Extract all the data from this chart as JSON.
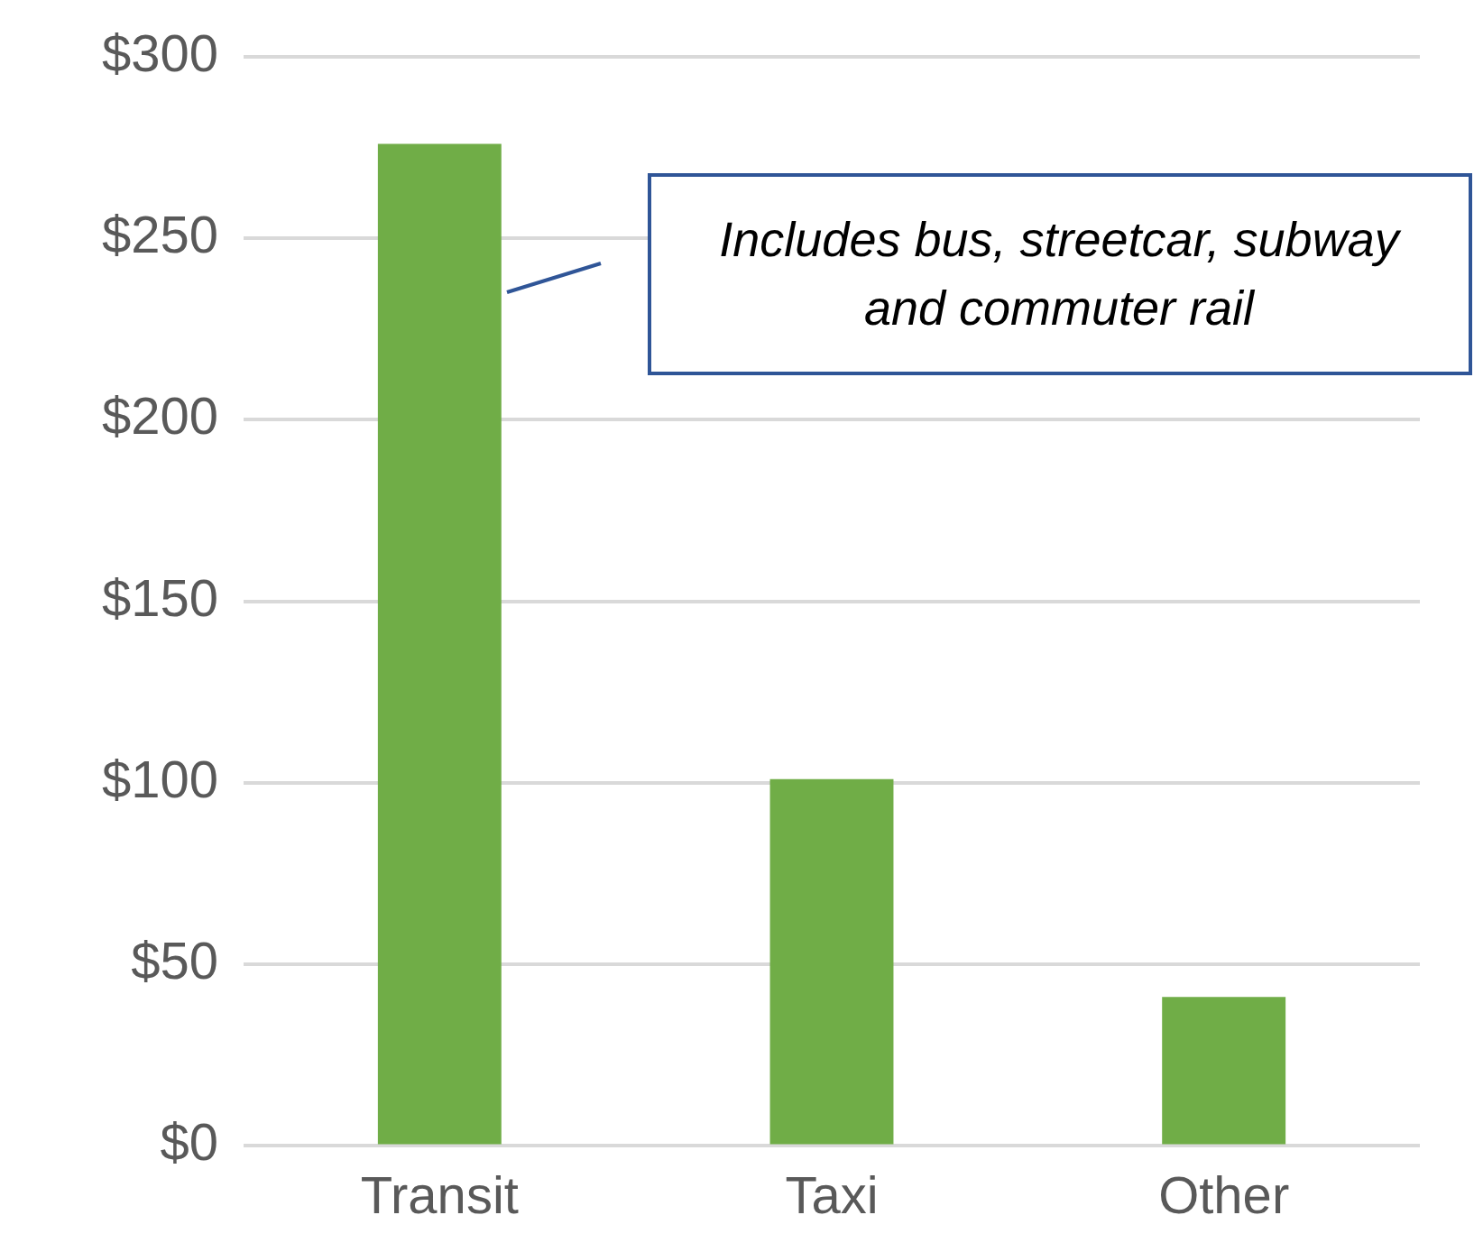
{
  "chart_data": {
    "type": "bar",
    "categories": [
      "Transit",
      "Taxi",
      "Other"
    ],
    "values": [
      276,
      101,
      41
    ],
    "color": "#70ad47",
    "ylim": [
      0,
      300
    ],
    "yticks": [
      {
        "value": 0,
        "label": "$0"
      },
      {
        "value": 50,
        "label": "$50"
      },
      {
        "value": 100,
        "label": "$100"
      },
      {
        "value": 150,
        "label": "$150"
      },
      {
        "value": 200,
        "label": "$200"
      },
      {
        "value": 250,
        "label": "$250"
      },
      {
        "value": 300,
        "label": "$300"
      }
    ],
    "grid": "y",
    "legend": false,
    "annotations": [
      "Includes bus, streetcar, subway and commuter rail"
    ]
  }
}
